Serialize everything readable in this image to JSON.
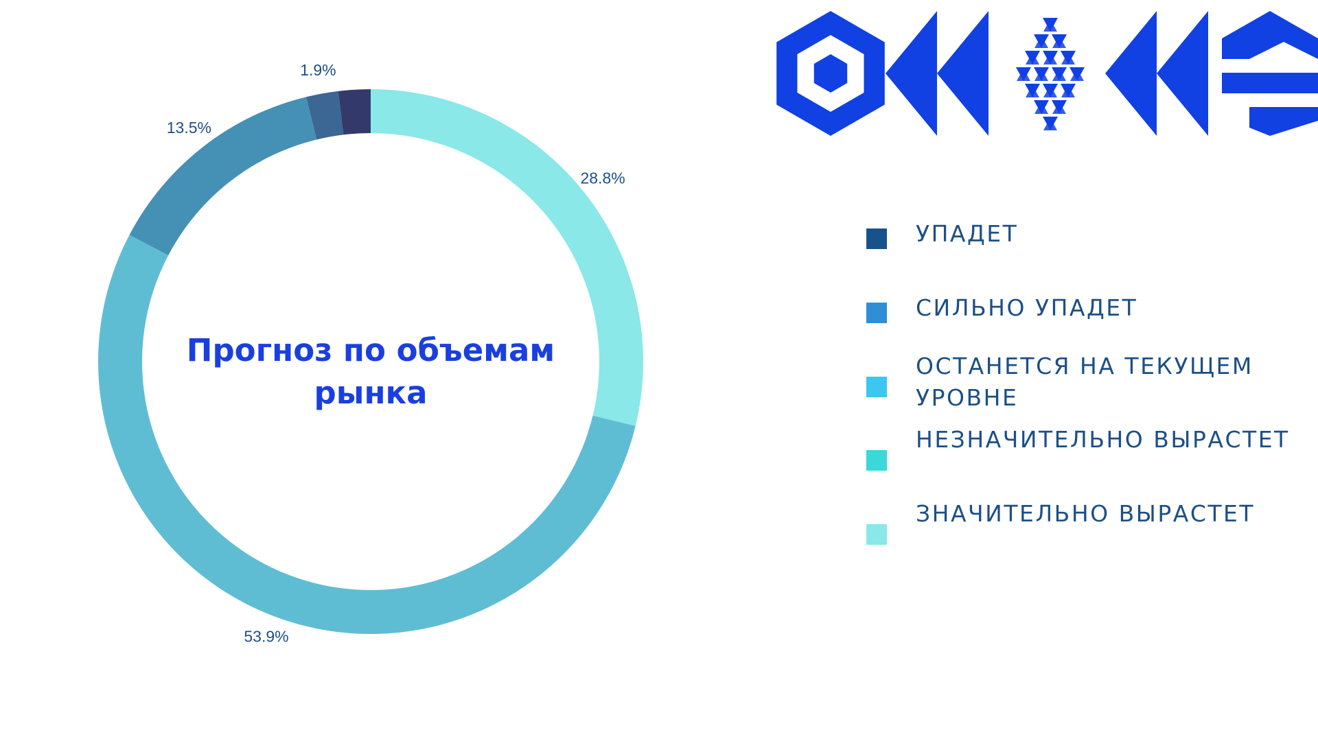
{
  "chart_data": {
    "type": "donut",
    "title": "Прогноз по объемам рынка",
    "slices": [
      {
        "label": "ЗНАЧИТЕЛЬНО ВЫРАСТЕТ",
        "value": 28.8,
        "value_label": "28.8%",
        "color": "#8ae8e8"
      },
      {
        "label": "ОСТАНЕТСЯ НА ТЕКУЩЕМ УРОВНЕ",
        "value": 53.9,
        "value_label": "53.9%",
        "color": "#5fbdd3"
      },
      {
        "label": "НЕЗНАЧИТЕЛЬНО ВЫРАСТЕТ",
        "value": 13.5,
        "value_label": "13.5%",
        "color": "#4590b5"
      },
      {
        "label": "СИЛЬНО УПАДЕТ",
        "value": 1.9,
        "value_label": "1.9%",
        "color": "#3c6694"
      },
      {
        "label": "УПАДЕТ",
        "value": 1.9,
        "value_label": "",
        "color": "#333a6b"
      }
    ],
    "legend": [
      {
        "label": "УПАДЕТ",
        "color": "#17538a"
      },
      {
        "label": "СИЛЬНО УПАДЕТ",
        "color": "#2e8fd6"
      },
      {
        "label": "ОСТАНЕТСЯ НА ТЕКУЩЕМ УРОВНЕ",
        "color": "#3bc7ef"
      },
      {
        "label": "НЕЗНАЧИТЕЛЬНО ВЫРАСТЕТ",
        "color": "#3ad8d8"
      },
      {
        "label": "ЗНАЧИТЕЛЬНО ВЫРАСТЕТ",
        "color": "#8ae8e8"
      }
    ],
    "legend_position": "right"
  },
  "colors": {
    "title": "#1a3fe0",
    "text": "#1c4f86",
    "ornament": "#1140e3"
  },
  "decoration": {
    "ornament_icon": "geometric-ornament"
  }
}
